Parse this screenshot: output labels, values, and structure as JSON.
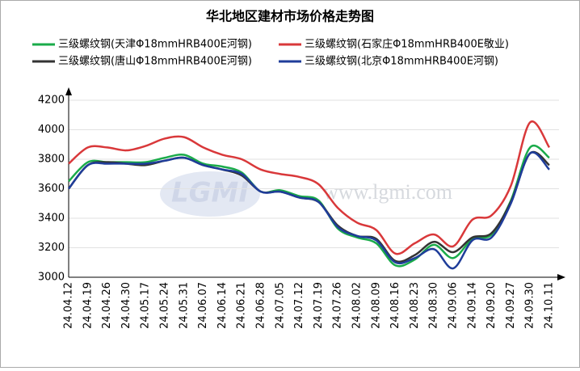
{
  "chart_data": {
    "type": "line",
    "title": "华北地区建材市场价格走势图",
    "watermark": [
      "LGMI",
      "www.lgmi.com"
    ],
    "categories": [
      "24.04.12",
      "24.04.19",
      "24.04.26",
      "24.04.30",
      "24.05.17",
      "24.05.24",
      "24.05.31",
      "24.06.07",
      "24.06.14",
      "24.06.21",
      "24.06.28",
      "24.07.05",
      "24.07.12",
      "24.07.19",
      "24.07.26",
      "24.08.02",
      "24.08.09",
      "24.08.16",
      "24.08.23",
      "24.08.30",
      "24.09.06",
      "24.09.14",
      "24.09.20",
      "24.09.27",
      "24.09.30",
      "24.10.11"
    ],
    "series": [
      {
        "name": "三级螺纹钢(天津Φ18mmHRB400E河钢)",
        "color": "#1aab4a",
        "values": [
          3650,
          3780,
          3780,
          3780,
          3780,
          3810,
          3830,
          3770,
          3750,
          3710,
          3580,
          3590,
          3550,
          3520,
          3330,
          3270,
          3230,
          3080,
          3120,
          3220,
          3130,
          3260,
          3290,
          3520,
          3880,
          3810
        ]
      },
      {
        "name": "三级螺纹钢(石家庄Φ18mmHRB400E敬业)",
        "color": "#d9383a",
        "values": [
          3770,
          3880,
          3880,
          3860,
          3890,
          3940,
          3950,
          3880,
          3830,
          3800,
          3730,
          3700,
          3680,
          3630,
          3470,
          3370,
          3320,
          3160,
          3230,
          3290,
          3210,
          3390,
          3420,
          3620,
          4050,
          3880
        ]
      },
      {
        "name": "三级螺纹钢(唐山Φ18mmHRB400E河钢)",
        "color": "#333333",
        "values": [
          3600,
          3760,
          3780,
          3770,
          3760,
          3790,
          3810,
          3760,
          3730,
          3690,
          3580,
          3580,
          3540,
          3510,
          3350,
          3280,
          3260,
          3110,
          3150,
          3240,
          3170,
          3270,
          3300,
          3510,
          3840,
          3760
        ]
      },
      {
        "name": "三级螺纹钢(北京Φ18mmHRB400E河钢)",
        "color": "#1f3d9a",
        "values": [
          3600,
          3760,
          3770,
          3770,
          3770,
          3790,
          3810,
          3760,
          3730,
          3700,
          3580,
          3580,
          3540,
          3510,
          3340,
          3280,
          3250,
          3100,
          3130,
          3190,
          3060,
          3250,
          3270,
          3500,
          3840,
          3730
        ]
      }
    ],
    "ylim": [
      3000,
      4200
    ],
    "yticks": [
      3000,
      3200,
      3400,
      3600,
      3800,
      4000,
      4200
    ],
    "grid": true
  }
}
